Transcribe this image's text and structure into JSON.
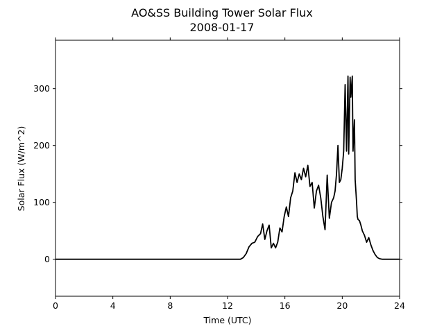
{
  "chart_data": {
    "type": "line",
    "title": "AO&SS Building Tower Solar Flux",
    "subtitle": "2008-01-17",
    "xlabel": "Time (UTC)",
    "ylabel": "Solar Flux (W/m^2)",
    "xlim": [
      0,
      24
    ],
    "ylim": [
      -65,
      385
    ],
    "xticks": [
      "0",
      "4",
      "8",
      "12",
      "16",
      "20",
      "24"
    ],
    "xtick_values": [
      0,
      4,
      8,
      12,
      16,
      20,
      24
    ],
    "yticks": [
      "0",
      "100",
      "200",
      "300"
    ],
    "ytick_values": [
      0,
      100,
      200,
      300
    ],
    "grid": false,
    "line_color": "#000000",
    "series": [
      {
        "x": [
          0,
          2,
          4,
          6,
          8,
          10,
          12,
          12.9,
          13.1,
          13.3,
          13.5,
          13.7,
          13.9,
          14.1,
          14.3,
          14.45,
          14.6,
          14.75,
          14.9,
          15.05,
          15.2,
          15.35,
          15.5,
          15.65,
          15.8,
          15.95,
          16.1,
          16.25,
          16.4,
          16.55,
          16.7,
          16.85,
          17.0,
          17.15,
          17.3,
          17.45,
          17.6,
          17.75,
          17.9,
          18.05,
          18.2,
          18.35,
          18.5,
          18.65,
          18.8,
          18.95,
          19.1,
          19.25,
          19.4,
          19.5,
          19.6,
          19.7,
          19.8,
          19.9,
          20.0,
          20.1,
          20.2,
          20.3,
          20.4,
          20.45,
          20.55,
          20.6,
          20.7,
          20.75,
          20.85,
          20.9,
          21.0,
          21.05,
          21.1,
          21.2,
          21.3,
          21.4,
          21.55,
          21.7,
          21.85,
          22.0,
          22.15,
          22.3,
          22.45,
          22.6,
          22.8,
          23.0,
          23.3,
          23.6,
          24
        ],
        "y": [
          0,
          0,
          0,
          0,
          0,
          0,
          0,
          0,
          3,
          10,
          22,
          28,
          30,
          40,
          45,
          62,
          35,
          50,
          60,
          20,
          28,
          20,
          30,
          55,
          48,
          75,
          92,
          75,
          108,
          120,
          152,
          135,
          150,
          140,
          160,
          145,
          165,
          128,
          135,
          90,
          120,
          130,
          108,
          75,
          52,
          148,
          72,
          100,
          108,
          120,
          150,
          200,
          135,
          140,
          160,
          190,
          307,
          190,
          322,
          185,
          320,
          285,
          322,
          190,
          245,
          140,
          100,
          75,
          70,
          68,
          60,
          50,
          42,
          30,
          38,
          25,
          15,
          8,
          3,
          1,
          0,
          0,
          0,
          0,
          0
        ]
      }
    ]
  }
}
